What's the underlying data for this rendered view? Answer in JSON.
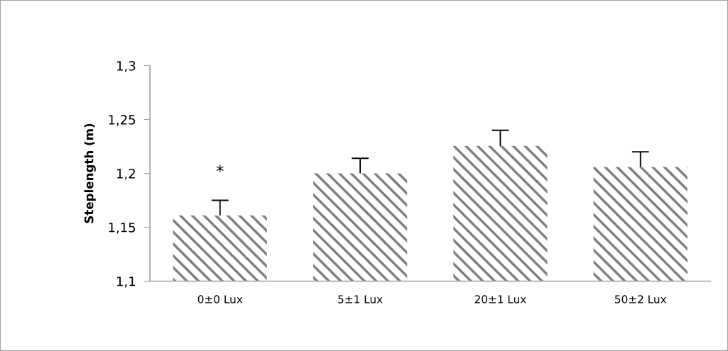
{
  "chart_data": {
    "type": "bar",
    "ylabel": "Steplength (m)",
    "categories": [
      "0±0 Lux",
      "5±1 Lux",
      "20±1 Lux",
      "50±2 Lux"
    ],
    "values": [
      1.161,
      1.2,
      1.2255,
      1.206
    ],
    "errors": [
      [
        1.161,
        1.175
      ],
      [
        1.2,
        1.214
      ],
      [
        1.2255,
        1.24
      ],
      [
        1.206,
        1.22
      ]
    ],
    "color": "#808080",
    "ylim": [
      1.1,
      1.3
    ],
    "yticks": [
      {
        "value": 1.1,
        "label": "1,1"
      },
      {
        "value": 1.15,
        "label": "1,15"
      },
      {
        "value": 1.2,
        "label": "1,2"
      },
      {
        "value": 1.25,
        "label": "1,25"
      },
      {
        "value": 1.3,
        "label": "1,3"
      }
    ],
    "annotations": [
      "*"
    ],
    "grid": false
  }
}
